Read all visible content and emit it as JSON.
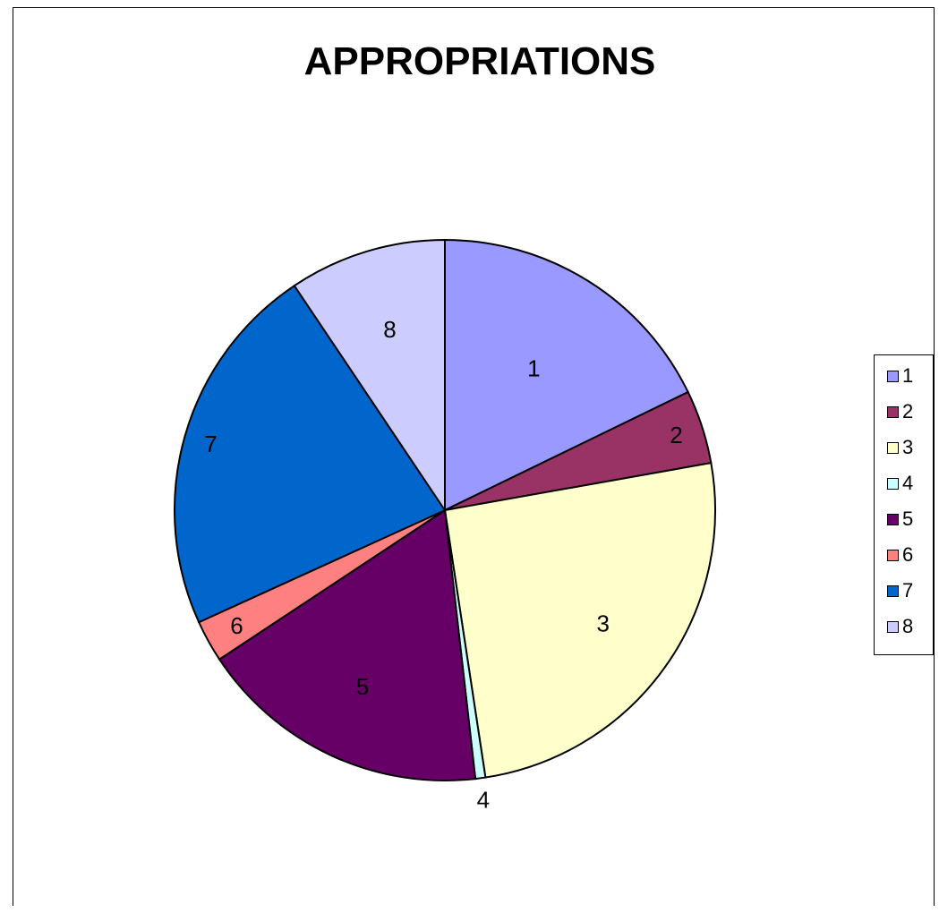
{
  "chart_data": {
    "type": "pie",
    "title": "APPROPRIATIONS",
    "categories": [
      "1",
      "2",
      "3",
      "4",
      "5",
      "6",
      "7",
      "8"
    ],
    "values": [
      17.8,
      4.4,
      25.4,
      0.6,
      17.5,
      2.5,
      22.4,
      9.4
    ],
    "unit": "percent (estimated)",
    "colors": [
      "#9999FF",
      "#993366",
      "#FFFFCC",
      "#CCFFFF",
      "#660066",
      "#FF8080",
      "#0066CC",
      "#CCCCFF"
    ],
    "legend_placement": "right",
    "slice_labels": [
      "1",
      "2",
      "3",
      "4",
      "5",
      "6",
      "7",
      "8"
    ]
  }
}
